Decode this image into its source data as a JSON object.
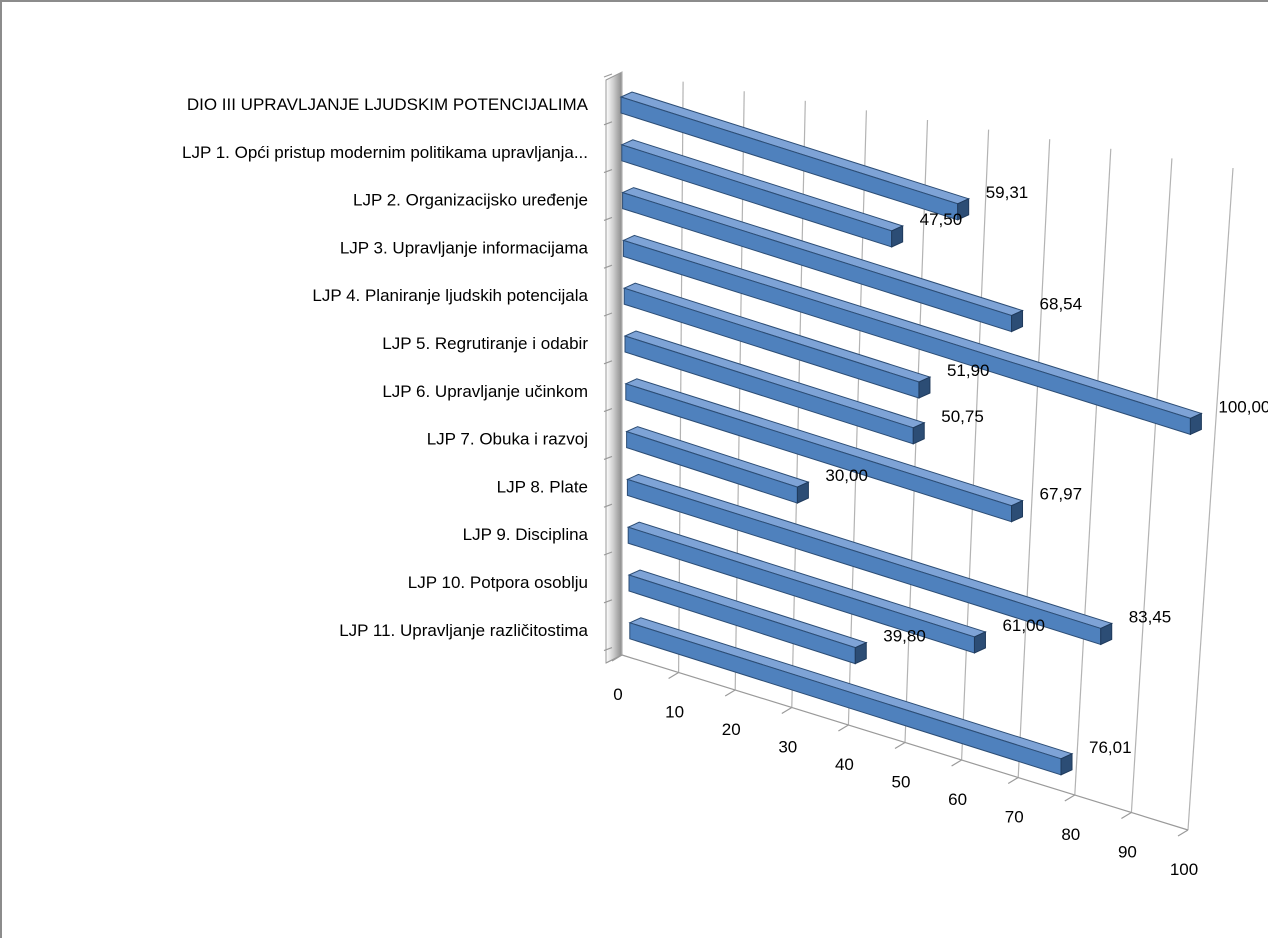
{
  "chart_data": {
    "type": "bar",
    "orientation": "horizontal",
    "style": "3d",
    "title": "",
    "xlabel": "",
    "ylabel": "",
    "xlim": [
      0,
      100
    ],
    "grid": true,
    "legend": "none",
    "bar_color": "#4f81bd",
    "bar_dark_color": "#2c4d75",
    "ticks": [
      "0",
      "10",
      "20",
      "30",
      "40",
      "50",
      "60",
      "70",
      "80",
      "90",
      "100"
    ],
    "categories": [
      "DIO III UPRAVLJANJE LJUDSKIM POTENCIJALIMA",
      "LJP 1. Opći pristup modernim politikama upravljanja...",
      "LJP 2. Organizacijsko uređenje",
      "LJP 3. Upravljanje informacijama",
      "LJP 4. Planiranje ljudskih potencijala",
      "LJP 5. Regrutiranje i odabir",
      "LJP 6. Upravljanje učinkom",
      "LJP 7. Obuka i razvoj",
      "LJP 8. Plate",
      "LJP 9. Disciplina",
      "LJP 10. Potpora osoblju",
      "LJP 11. Upravljanje različitostima"
    ],
    "values": [
      59.31,
      47.5,
      68.54,
      100.0,
      51.9,
      50.75,
      67.97,
      30.0,
      83.45,
      61.0,
      39.8,
      76.01
    ],
    "value_labels": [
      "59,31",
      "47,50",
      "68,54",
      "100,00",
      "51,90",
      "50,75",
      "67,97",
      "30,00",
      "83,45",
      "61,00",
      "39,80",
      "76,01"
    ]
  }
}
